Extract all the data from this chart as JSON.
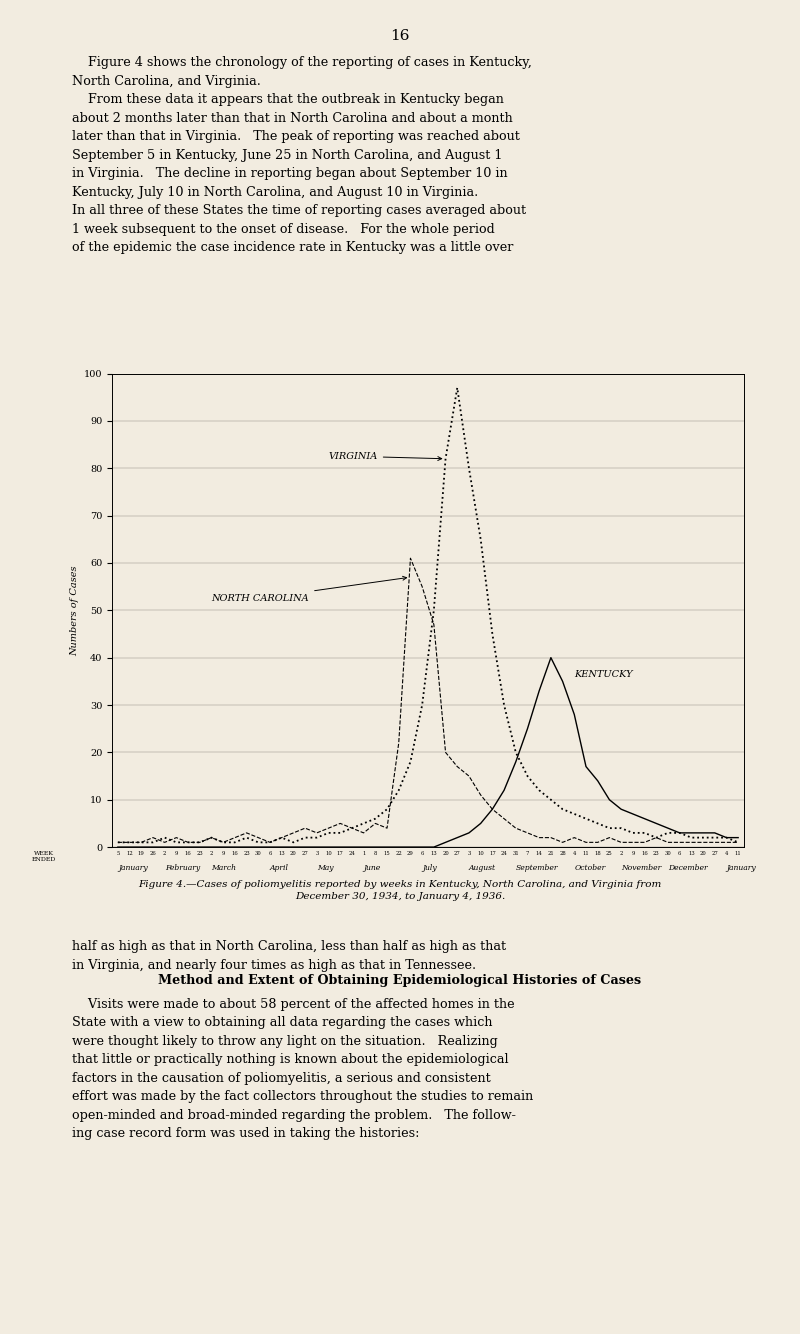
{
  "page_number": "16",
  "title_caption": "Figure 4.—Cases of poliomyelitis reported by weeks in Kentucky, North Carolina, and Virginia from\nDecember 30, 1934, to January 4, 1936.",
  "ylabel": "Numbers of Cases",
  "ylim": [
    0,
    100
  ],
  "yticks": [
    0,
    10,
    20,
    30,
    40,
    50,
    60,
    70,
    80,
    90,
    100
  ],
  "background_color": "#f2ece0",
  "page_color": "#f2ece0",
  "num_weeks": 54,
  "north_carolina": [
    1,
    1,
    1,
    2,
    1,
    2,
    1,
    1,
    2,
    1,
    2,
    3,
    2,
    1,
    2,
    3,
    4,
    3,
    4,
    5,
    4,
    3,
    5,
    4,
    22,
    61,
    55,
    47,
    20,
    17,
    15,
    11,
    8,
    6,
    4,
    3,
    2,
    2,
    1,
    2,
    1,
    1,
    2,
    1,
    1,
    1,
    2,
    1,
    1,
    1,
    1,
    1,
    1,
    1
  ],
  "virginia": [
    1,
    1,
    1,
    1,
    2,
    1,
    1,
    1,
    2,
    1,
    1,
    2,
    1,
    1,
    2,
    1,
    2,
    2,
    3,
    3,
    4,
    5,
    6,
    8,
    12,
    18,
    30,
    50,
    82,
    97,
    80,
    65,
    45,
    30,
    20,
    15,
    12,
    10,
    8,
    7,
    6,
    5,
    4,
    4,
    3,
    3,
    2,
    3,
    3,
    2,
    2,
    2,
    2,
    1
  ],
  "kentucky": [
    0,
    0,
    0,
    0,
    0,
    0,
    0,
    0,
    0,
    0,
    0,
    0,
    0,
    0,
    0,
    0,
    0,
    0,
    0,
    0,
    0,
    0,
    0,
    0,
    0,
    0,
    0,
    0,
    1,
    2,
    3,
    5,
    8,
    12,
    18,
    25,
    33,
    40,
    35,
    28,
    17,
    14,
    10,
    8,
    7,
    6,
    5,
    4,
    3,
    3,
    3,
    3,
    2,
    2
  ],
  "week_days": [
    5,
    12,
    19,
    26,
    2,
    9,
    16,
    23,
    2,
    9,
    16,
    23,
    30,
    6,
    13,
    20,
    27,
    3,
    10,
    17,
    24,
    1,
    8,
    15,
    22,
    29,
    6,
    13,
    20,
    27,
    3,
    10,
    17,
    24,
    31,
    7,
    14,
    21,
    28,
    4,
    11,
    18,
    25,
    2,
    9,
    16,
    23,
    30,
    6,
    13,
    20,
    27,
    4,
    11
  ],
  "month_names": [
    "January",
    "February",
    "March",
    "April",
    "May",
    "June",
    "July",
    "August",
    "September",
    "October",
    "November",
    "December",
    "January"
  ],
  "month_week_starts": [
    0,
    4,
    8,
    13,
    17,
    21,
    26,
    30,
    34,
    39,
    43,
    47,
    52
  ],
  "text_top": "    Figure 4 shows the chronology of the reporting of cases in Kentucky,\nNorth Carolina, and Virginia.\n    From these data it appears that the outbreak in Kentucky began\nabout 2 months later than that in North Carolina and about a month\nlater than that in Virginia.   The peak of reporting was reached about\nSeptember 5 in Kentucky, June 25 in North Carolina, and August 1\nin Virginia.   The decline in reporting began about September 10 in\nKentucky, July 10 in North Carolina, and August 10 in Virginia.\nIn all three of these States the time of reporting cases averaged about\n1 week subsequent to the onset of disease.   For the whole period\nof the epidemic the case incidence rate in Kentucky was a little over",
  "text_bottom1": "half as high as that in North Carolina, less than half as high as that\nin Virginia, and nearly four times as high as that in Tennessee.",
  "text_bottom2": "Method and Extent of Obtaining Epidemiological Histories of Cases",
  "text_bottom3": "    Visits were made to about 58 percent of the affected homes in the\nState with a view to obtaining all data regarding the cases which\nwere thought likely to throw any light on the situation.   Realizing\nthat little or practically nothing is known about the epidemiological\nfactors in the causation of poliomyelitis, a serious and consistent\neffort was made by the fact collectors throughout the studies to remain\nopen-minded and broad-minded regarding the problem.   The follow-\ning case record form was used in taking the histories:"
}
